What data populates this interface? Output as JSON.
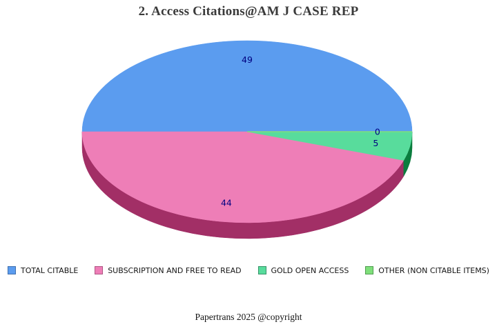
{
  "title": "2. Access Citations@AM J CASE REP",
  "footer": "Papertrans 2025 @copyright",
  "background_color": "#ffffff",
  "title_color": "#3a3a3a",
  "chart_data": {
    "type": "pie",
    "style": "3d",
    "title": "2. Access Citations@AM J CASE REP",
    "total": 98,
    "start_angle_deg": 0,
    "direction": "counterclockwise",
    "legend_position": "bottom",
    "value_label_color": "#000080",
    "slices": [
      {
        "label": "TOTAL CITABLE",
        "value": 49,
        "color": "#5b9cef",
        "side_color": "#3f6fb3",
        "legend_border": "#3f6fae"
      },
      {
        "label": "SUBSCRIPTION AND FREE TO READ",
        "value": 44,
        "color": "#ee7eb7",
        "side_color": "#a22f66",
        "legend_border": "#af5583"
      },
      {
        "label": "GOLD OPEN ACCESS",
        "value": 5,
        "color": "#58dc9c",
        "side_color": "#0b7d3e",
        "legend_border": "#359268"
      },
      {
        "label": "OTHER (NON CITABLE ITEMS)",
        "value": 0,
        "color": "#7fdf7b",
        "side_color": "#4e9b4e",
        "legend_border": "#4e9b4e"
      }
    ]
  }
}
